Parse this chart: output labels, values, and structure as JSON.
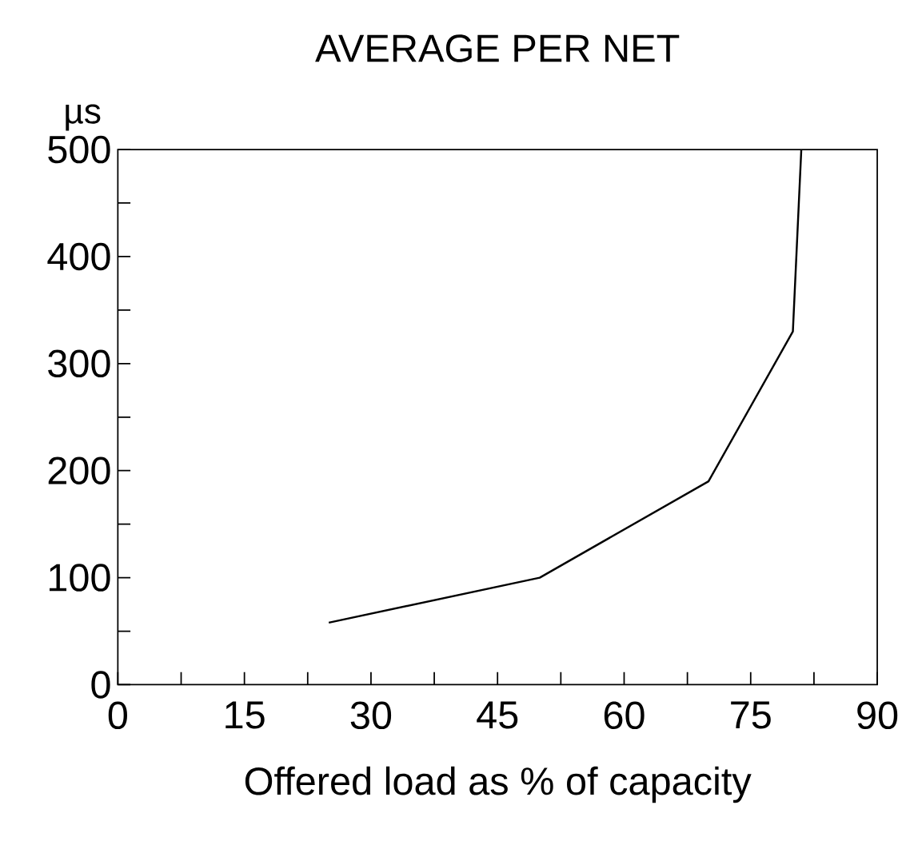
{
  "chart_data": {
    "type": "line",
    "title": "AVERAGE PER NET",
    "xlabel": "Offered load as % of capacity",
    "ylabel": "µs",
    "x": [
      25,
      50,
      70,
      80,
      81
    ],
    "values": [
      58,
      100,
      190,
      330,
      500
    ],
    "color": "#000000",
    "xlim": [
      0,
      90
    ],
    "ylim": [
      0,
      500
    ],
    "xticks": [
      0,
      {
        "value": 7.5,
        "label": null
      },
      15,
      {
        "value": 22.5,
        "label": null
      },
      30,
      {
        "value": 37.5,
        "label": null
      },
      45,
      {
        "value": 52.5,
        "label": null
      },
      60,
      {
        "value": 67.5,
        "label": null
      },
      75,
      {
        "value": 82.5,
        "label": null
      },
      90
    ],
    "yticks": [
      0,
      {
        "value": 50,
        "label": null
      },
      100,
      {
        "value": 150,
        "label": null
      },
      200,
      {
        "value": 250,
        "label": null
      },
      300,
      {
        "value": 350,
        "label": null
      },
      400,
      {
        "value": 450,
        "label": null
      },
      500
    ],
    "grid": false,
    "marker": "none",
    "line_style": "solid"
  }
}
